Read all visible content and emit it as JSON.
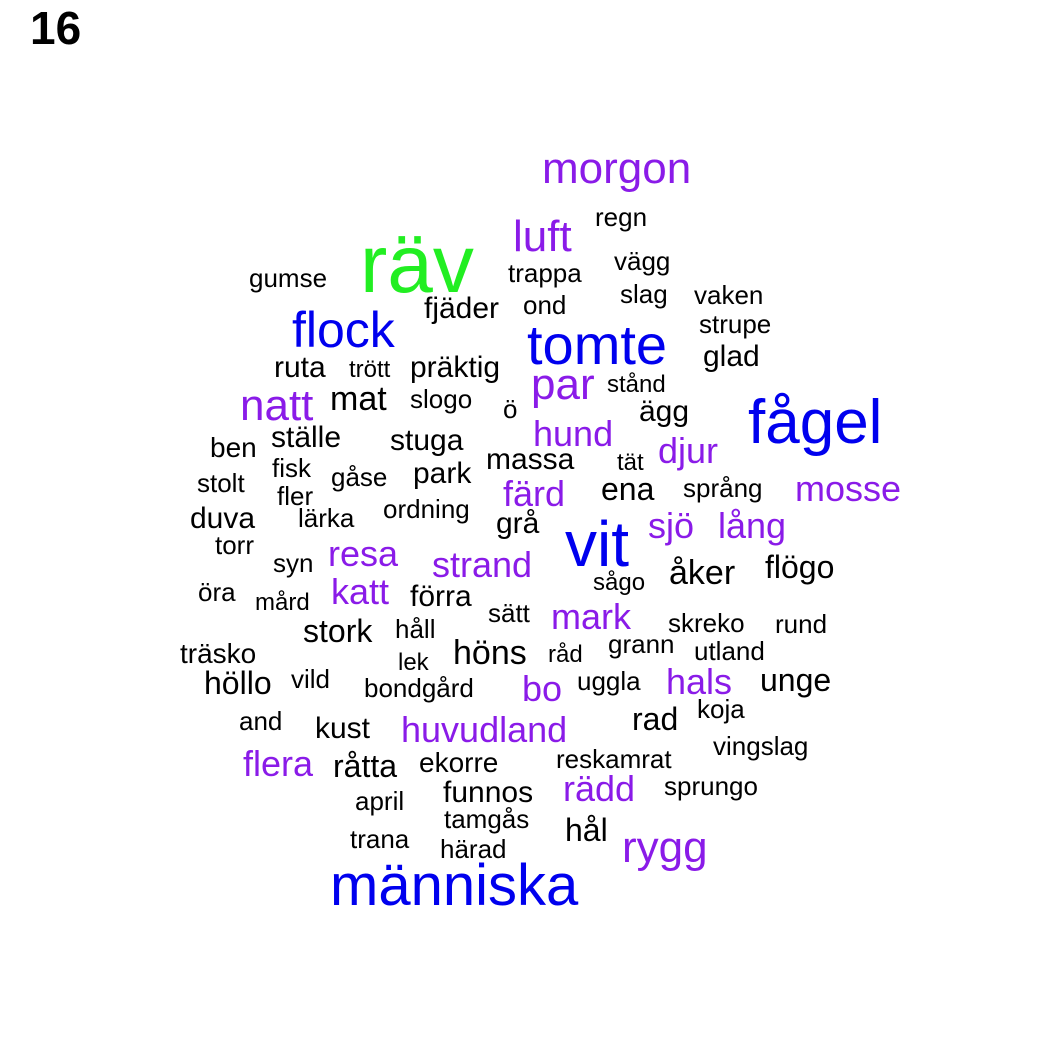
{
  "page_number": "16",
  "colors": {
    "green": "#22ee22",
    "blue": "#0000ee",
    "purple": "#8a1be8",
    "black": "#000000"
  },
  "words": [
    {
      "text": "räv",
      "weight": "largest",
      "color": "green"
    },
    {
      "text": "människa",
      "weight": "xl",
      "color": "blue"
    },
    {
      "text": "vit",
      "weight": "xl",
      "color": "blue"
    },
    {
      "text": "fågel",
      "weight": "xl",
      "color": "blue"
    },
    {
      "text": "tomte",
      "weight": "xl",
      "color": "blue"
    },
    {
      "text": "flock",
      "weight": "large",
      "color": "blue"
    },
    {
      "text": "morgon",
      "weight": "large",
      "color": "purple"
    },
    {
      "text": "luft",
      "weight": "large",
      "color": "purple"
    },
    {
      "text": "natt",
      "weight": "large",
      "color": "purple"
    },
    {
      "text": "par",
      "weight": "large",
      "color": "purple"
    },
    {
      "text": "hund",
      "weight": "medium",
      "color": "purple"
    },
    {
      "text": "djur",
      "weight": "medium",
      "color": "purple"
    },
    {
      "text": "mosse",
      "weight": "medium",
      "color": "purple"
    },
    {
      "text": "färd",
      "weight": "medium",
      "color": "purple"
    },
    {
      "text": "sjö",
      "weight": "medium",
      "color": "purple"
    },
    {
      "text": "lång",
      "weight": "medium",
      "color": "purple"
    },
    {
      "text": "resa",
      "weight": "medium",
      "color": "purple"
    },
    {
      "text": "strand",
      "weight": "medium",
      "color": "purple"
    },
    {
      "text": "katt",
      "weight": "medium",
      "color": "purple"
    },
    {
      "text": "mark",
      "weight": "medium",
      "color": "purple"
    },
    {
      "text": "hals",
      "weight": "medium",
      "color": "purple"
    },
    {
      "text": "bo",
      "weight": "medium",
      "color": "purple"
    },
    {
      "text": "huvudland",
      "weight": "medium",
      "color": "purple"
    },
    {
      "text": "flera",
      "weight": "medium",
      "color": "purple"
    },
    {
      "text": "rädd",
      "weight": "medium",
      "color": "purple"
    },
    {
      "text": "rygg",
      "weight": "medium",
      "color": "purple"
    },
    {
      "text": "regn",
      "weight": "small",
      "color": "black"
    },
    {
      "text": "vägg",
      "weight": "small",
      "color": "black"
    },
    {
      "text": "trappa",
      "weight": "small",
      "color": "black"
    },
    {
      "text": "gumse",
      "weight": "small",
      "color": "black"
    },
    {
      "text": "slag",
      "weight": "small",
      "color": "black"
    },
    {
      "text": "vaken",
      "weight": "small",
      "color": "black"
    },
    {
      "text": "fjäder",
      "weight": "small",
      "color": "black"
    },
    {
      "text": "ond",
      "weight": "small",
      "color": "black"
    },
    {
      "text": "strupe",
      "weight": "small",
      "color": "black"
    },
    {
      "text": "glad",
      "weight": "small",
      "color": "black"
    },
    {
      "text": "ruta",
      "weight": "small",
      "color": "black"
    },
    {
      "text": "trött",
      "weight": "small",
      "color": "black"
    },
    {
      "text": "präktig",
      "weight": "small",
      "color": "black"
    },
    {
      "text": "stånd",
      "weight": "small",
      "color": "black"
    },
    {
      "text": "mat",
      "weight": "small",
      "color": "black"
    },
    {
      "text": "slogo",
      "weight": "small",
      "color": "black"
    },
    {
      "text": "ö",
      "weight": "small",
      "color": "black"
    },
    {
      "text": "ägg",
      "weight": "small",
      "color": "black"
    },
    {
      "text": "ben",
      "weight": "small",
      "color": "black"
    },
    {
      "text": "ställe",
      "weight": "small",
      "color": "black"
    },
    {
      "text": "stuga",
      "weight": "small",
      "color": "black"
    },
    {
      "text": "fisk",
      "weight": "small",
      "color": "black"
    },
    {
      "text": "massa",
      "weight": "small",
      "color": "black"
    },
    {
      "text": "tät",
      "weight": "small",
      "color": "black"
    },
    {
      "text": "stolt",
      "weight": "small",
      "color": "black"
    },
    {
      "text": "gåse",
      "weight": "small",
      "color": "black"
    },
    {
      "text": "park",
      "weight": "small",
      "color": "black"
    },
    {
      "text": "fler",
      "weight": "small",
      "color": "black"
    },
    {
      "text": "ena",
      "weight": "small",
      "color": "black"
    },
    {
      "text": "språng",
      "weight": "small",
      "color": "black"
    },
    {
      "text": "duva",
      "weight": "small",
      "color": "black"
    },
    {
      "text": "lärka",
      "weight": "small",
      "color": "black"
    },
    {
      "text": "ordning",
      "weight": "small",
      "color": "black"
    },
    {
      "text": "grå",
      "weight": "small",
      "color": "black"
    },
    {
      "text": "torr",
      "weight": "small",
      "color": "black"
    },
    {
      "text": "syn",
      "weight": "small",
      "color": "black"
    },
    {
      "text": "sågo",
      "weight": "small",
      "color": "black"
    },
    {
      "text": "åker",
      "weight": "small",
      "color": "black"
    },
    {
      "text": "flögo",
      "weight": "small",
      "color": "black"
    },
    {
      "text": "öra",
      "weight": "small",
      "color": "black"
    },
    {
      "text": "mård",
      "weight": "small",
      "color": "black"
    },
    {
      "text": "förra",
      "weight": "small",
      "color": "black"
    },
    {
      "text": "sätt",
      "weight": "small",
      "color": "black"
    },
    {
      "text": "skreko",
      "weight": "small",
      "color": "black"
    },
    {
      "text": "rund",
      "weight": "small",
      "color": "black"
    },
    {
      "text": "stork",
      "weight": "small",
      "color": "black"
    },
    {
      "text": "håll",
      "weight": "small",
      "color": "black"
    },
    {
      "text": "grann",
      "weight": "small",
      "color": "black"
    },
    {
      "text": "träsko",
      "weight": "small",
      "color": "black"
    },
    {
      "text": "lek",
      "weight": "small",
      "color": "black"
    },
    {
      "text": "höns",
      "weight": "small",
      "color": "black"
    },
    {
      "text": "råd",
      "weight": "small",
      "color": "black"
    },
    {
      "text": "utland",
      "weight": "small",
      "color": "black"
    },
    {
      "text": "höllo",
      "weight": "small",
      "color": "black"
    },
    {
      "text": "vild",
      "weight": "small",
      "color": "black"
    },
    {
      "text": "bondgård",
      "weight": "small",
      "color": "black"
    },
    {
      "text": "uggla",
      "weight": "small",
      "color": "black"
    },
    {
      "text": "unge",
      "weight": "small",
      "color": "black"
    },
    {
      "text": "and",
      "weight": "small",
      "color": "black"
    },
    {
      "text": "kust",
      "weight": "small",
      "color": "black"
    },
    {
      "text": "rad",
      "weight": "small",
      "color": "black"
    },
    {
      "text": "koja",
      "weight": "small",
      "color": "black"
    },
    {
      "text": "vingslag",
      "weight": "small",
      "color": "black"
    },
    {
      "text": "råtta",
      "weight": "small",
      "color": "black"
    },
    {
      "text": "ekorre",
      "weight": "small",
      "color": "black"
    },
    {
      "text": "reskamrat",
      "weight": "small",
      "color": "black"
    },
    {
      "text": "april",
      "weight": "small",
      "color": "black"
    },
    {
      "text": "funnos",
      "weight": "small",
      "color": "black"
    },
    {
      "text": "sprungo",
      "weight": "small",
      "color": "black"
    },
    {
      "text": "tamgås",
      "weight": "small",
      "color": "black"
    },
    {
      "text": "hål",
      "weight": "small",
      "color": "black"
    },
    {
      "text": "trana",
      "weight": "small",
      "color": "black"
    },
    {
      "text": "härad",
      "weight": "small",
      "color": "black"
    }
  ]
}
